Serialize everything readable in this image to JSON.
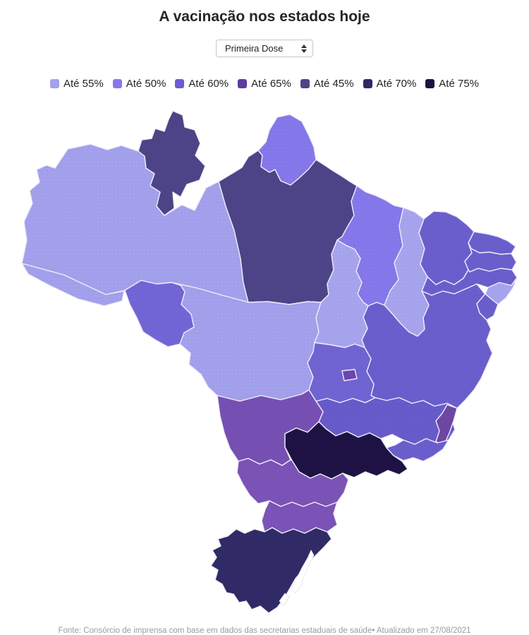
{
  "title": "A vacinação nos estados hoje",
  "controls": {
    "dose_select": {
      "value": "Primeira Dose",
      "options": [
        "Primeira Dose"
      ]
    }
  },
  "legend": {
    "items": [
      {
        "label": "Até 55%",
        "color": "#a2a0f0"
      },
      {
        "label": "Até 50%",
        "color": "#8678ec"
      },
      {
        "label": "Até 60%",
        "color": "#6a5cd3"
      },
      {
        "label": "Até 65%",
        "color": "#5e3c9b"
      },
      {
        "label": "Até 45%",
        "color": "#4c4487"
      },
      {
        "label": "Até 70%",
        "color": "#2e2964"
      },
      {
        "label": "Até 75%",
        "color": "#1c1243"
      }
    ]
  },
  "map": {
    "border_color": "#edecf7",
    "water_color": "#ffffff",
    "states": [
      {
        "id": "AC",
        "name": "Acre",
        "category": "Até 55%",
        "color": "#a3a0ec"
      },
      {
        "id": "AM",
        "name": "Amazonas",
        "category": "Até 55%",
        "color": "#a3a0ec"
      },
      {
        "id": "RR",
        "name": "Roraima",
        "category": "Até 45%",
        "color": "#4c4487"
      },
      {
        "id": "RO",
        "name": "Rondônia",
        "category": "Até 60%",
        "color": "#7265d5"
      },
      {
        "id": "PA",
        "name": "Pará",
        "category": "Até 45%",
        "color": "#4c4487"
      },
      {
        "id": "AP",
        "name": "Amapá",
        "category": "Até 50%",
        "color": "#8478ea"
      },
      {
        "id": "TO",
        "name": "Tocantins",
        "category": "Até 55%",
        "color": "#a7a4ee"
      },
      {
        "id": "MA",
        "name": "Maranhão",
        "category": "Até 50%",
        "color": "#8478ea"
      },
      {
        "id": "PI",
        "name": "Piauí",
        "category": "Até 55%",
        "color": "#a7a4ee"
      },
      {
        "id": "CE",
        "name": "Ceará",
        "category": "Até 60%",
        "color": "#6a5ecd"
      },
      {
        "id": "RN",
        "name": "Rio Grande do Norte",
        "category": "Até 60%",
        "color": "#6a5ecd"
      },
      {
        "id": "PB",
        "name": "Paraíba",
        "category": "Até 60%",
        "color": "#6a5ecd"
      },
      {
        "id": "PE",
        "name": "Pernambuco",
        "category": "Até 60%",
        "color": "#6a5ecd"
      },
      {
        "id": "AL",
        "name": "Alagoas",
        "category": "Até 55%",
        "color": "#a7a4ee"
      },
      {
        "id": "SE",
        "name": "Sergipe",
        "category": "Até 60%",
        "color": "#6a5ecd"
      },
      {
        "id": "BA",
        "name": "Bahia",
        "category": "Até 60%",
        "color": "#6a5ecd"
      },
      {
        "id": "MT",
        "name": "Mato Grosso",
        "category": "Até 55%",
        "color": "#a3a0ec"
      },
      {
        "id": "GO",
        "name": "Goiás",
        "category": "Até 60%",
        "color": "#7064d2"
      },
      {
        "id": "DF",
        "name": "Distrito Federal",
        "category": "Até 65%",
        "color": "#6b46ad"
      },
      {
        "id": "MS",
        "name": "Mato Grosso do Sul",
        "category": "Até 65%",
        "color": "#7550b2"
      },
      {
        "id": "MG",
        "name": "Minas Gerais",
        "category": "Até 60%",
        "color": "#675bcb"
      },
      {
        "id": "ES",
        "name": "Espírito Santo",
        "category": "Até 65%",
        "color": "#6d47a2"
      },
      {
        "id": "RJ",
        "name": "Rio de Janeiro",
        "category": "Até 60%",
        "color": "#6a5ecd"
      },
      {
        "id": "SP",
        "name": "São Paulo",
        "category": "Até 75%",
        "color": "#1e1245"
      },
      {
        "id": "PR",
        "name": "Paraná",
        "category": "Até 65%",
        "color": "#7b52b5"
      },
      {
        "id": "SC",
        "name": "Santa Catarina",
        "category": "Até 65%",
        "color": "#7b52b5"
      },
      {
        "id": "RS",
        "name": "Rio Grande do Sul",
        "category": "Até 70%",
        "color": "#302a66"
      }
    ]
  },
  "footer": {
    "source": "Fonte: Consórcio de imprensa com base em dados das secretarias estaduais de saúde• Atualizado em 27/08/2021"
  }
}
